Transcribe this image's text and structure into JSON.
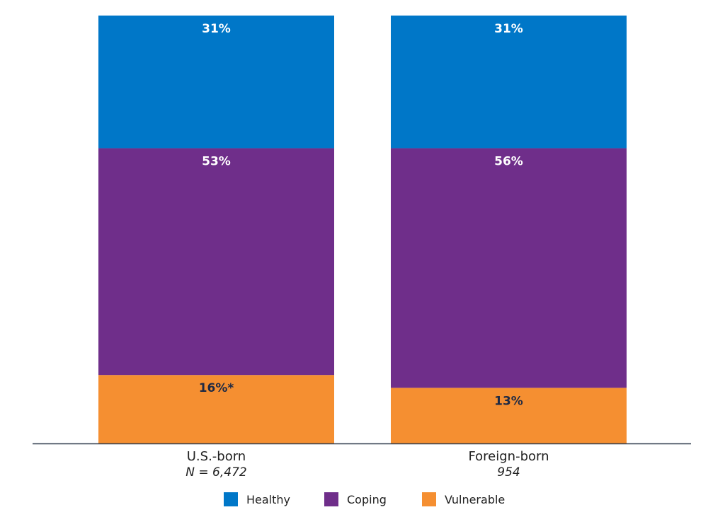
{
  "chart_data": {
    "type": "bar",
    "stacked": true,
    "orientation": "vertical",
    "categories": [
      "U.S.-born",
      "Foreign-born"
    ],
    "category_sublabels": [
      "N = 6,472",
      "954"
    ],
    "series": [
      {
        "name": "Vulnerable",
        "values": [
          16,
          13
        ],
        "labels": [
          "16%*",
          "13%"
        ],
        "color": "#f58f31",
        "label_color": "#1f2a44"
      },
      {
        "name": "Coping",
        "values": [
          53,
          56
        ],
        "labels": [
          "53%",
          "56%"
        ],
        "color": "#6f2e8a",
        "label_color": "#ffffff"
      },
      {
        "name": "Healthy",
        "values": [
          31,
          31
        ],
        "labels": [
          "31%",
          "31%"
        ],
        "color": "#0077c8",
        "label_color": "#ffffff"
      }
    ],
    "legend": {
      "placement": "bottom-center",
      "order": [
        "Healthy",
        "Coping",
        "Vulnerable"
      ]
    },
    "ylim": [
      0,
      100
    ],
    "grid": false,
    "axis_color": "#2f3b4c"
  }
}
